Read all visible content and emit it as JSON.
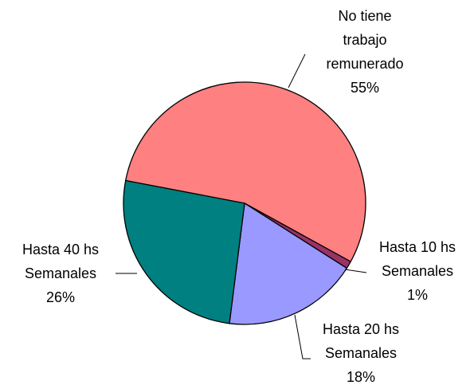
{
  "chart_data": {
    "type": "pie",
    "categories": [
      "No tiene trabajo remunerado",
      "Hasta 10 hs Semanales",
      "Hasta 20 hs Semanales",
      "Hasta 40 hs Semanales"
    ],
    "values": [
      55,
      1,
      18,
      26
    ],
    "value_labels": [
      "55%",
      "1%",
      "18%",
      "26%"
    ],
    "colors": [
      "#ff8080",
      "#993366",
      "#9999ff",
      "#008080"
    ]
  }
}
